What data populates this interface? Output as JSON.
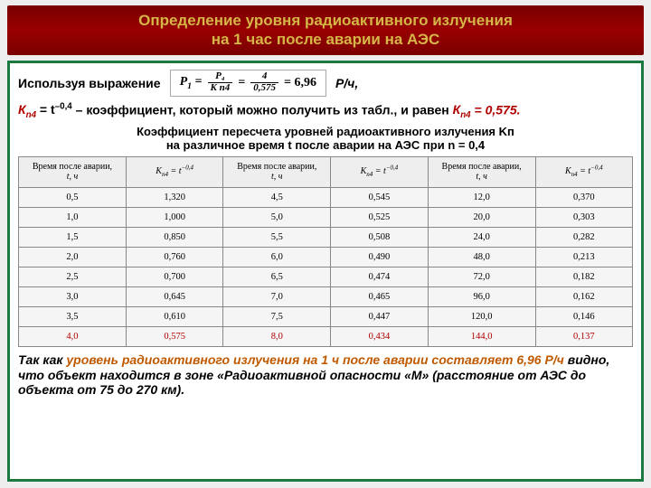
{
  "title": {
    "line1": "Определение уровня радиоактивного излучения",
    "line2": "на 1 час после аварии на АЭС"
  },
  "intro": {
    "use_expr": "Используя выражение",
    "formula": {
      "p_text": "P₁ =",
      "num1": "P₄",
      "den1": "K n4",
      "num2": "4",
      "den2": "0,575",
      "result": "= 6,96"
    },
    "unit": "Р/ч,"
  },
  "coeff_line": {
    "pre": "К",
    "sub": "n4",
    "eq": " = t",
    "pow": "–0,4",
    "rest": " – коэффициент, который можно получить из табл., и равен ",
    "k_value": " = 0,575."
  },
  "table_caption": {
    "l1": "Коэффициент пересчета уровней радиоактивного излучения Kп",
    "l2": "на различное время t после аварии на АЭС при n = 0,4"
  },
  "headers": {
    "time_a": "Время после аварии,",
    "time_b": "t, ч",
    "k": "Kn4 = t⁻⁰,⁴"
  },
  "table": {
    "rows": [
      {
        "t1": "0,5",
        "k1": "1,320",
        "t2": "4,5",
        "k2": "0,545",
        "t3": "12,0",
        "k3": "0,370",
        "emph": false
      },
      {
        "t1": "1,0",
        "k1": "1,000",
        "t2": "5,0",
        "k2": "0,525",
        "t3": "20,0",
        "k3": "0,303",
        "emph": false
      },
      {
        "t1": "1,5",
        "k1": "0,850",
        "t2": "5,5",
        "k2": "0,508",
        "t3": "24,0",
        "k3": "0,282",
        "emph": false
      },
      {
        "t1": "2,0",
        "k1": "0,760",
        "t2": "6,0",
        "k2": "0,490",
        "t3": "48,0",
        "k3": "0,213",
        "emph": false
      },
      {
        "t1": "2,5",
        "k1": "0,700",
        "t2": "6,5",
        "k2": "0,474",
        "t3": "72,0",
        "k3": "0,182",
        "emph": false
      },
      {
        "t1": "3,0",
        "k1": "0,645",
        "t2": "7,0",
        "k2": "0,465",
        "t3": "96,0",
        "k3": "0,162",
        "emph": false
      },
      {
        "t1": "3,5",
        "k1": "0,610",
        "t2": "7,5",
        "k2": "0,447",
        "t3": "120,0",
        "k3": "0,146",
        "emph": false
      },
      {
        "t1": "4,0",
        "k1": "0,575",
        "t2": "8,0",
        "k2": "0,434",
        "t3": "144,0",
        "k3": "0,137",
        "emph": true
      }
    ]
  },
  "conclusion": {
    "pre": "Так как ",
    "orange": "уровень радиоактивного излучения на 1 ч после аварии составляет 6,96 Р/ч",
    "rest": " видно, что объект находится в зоне «Радиоактивной опасности «М» (расстояние от АЭС до объекта от 75 до 270 км)."
  }
}
